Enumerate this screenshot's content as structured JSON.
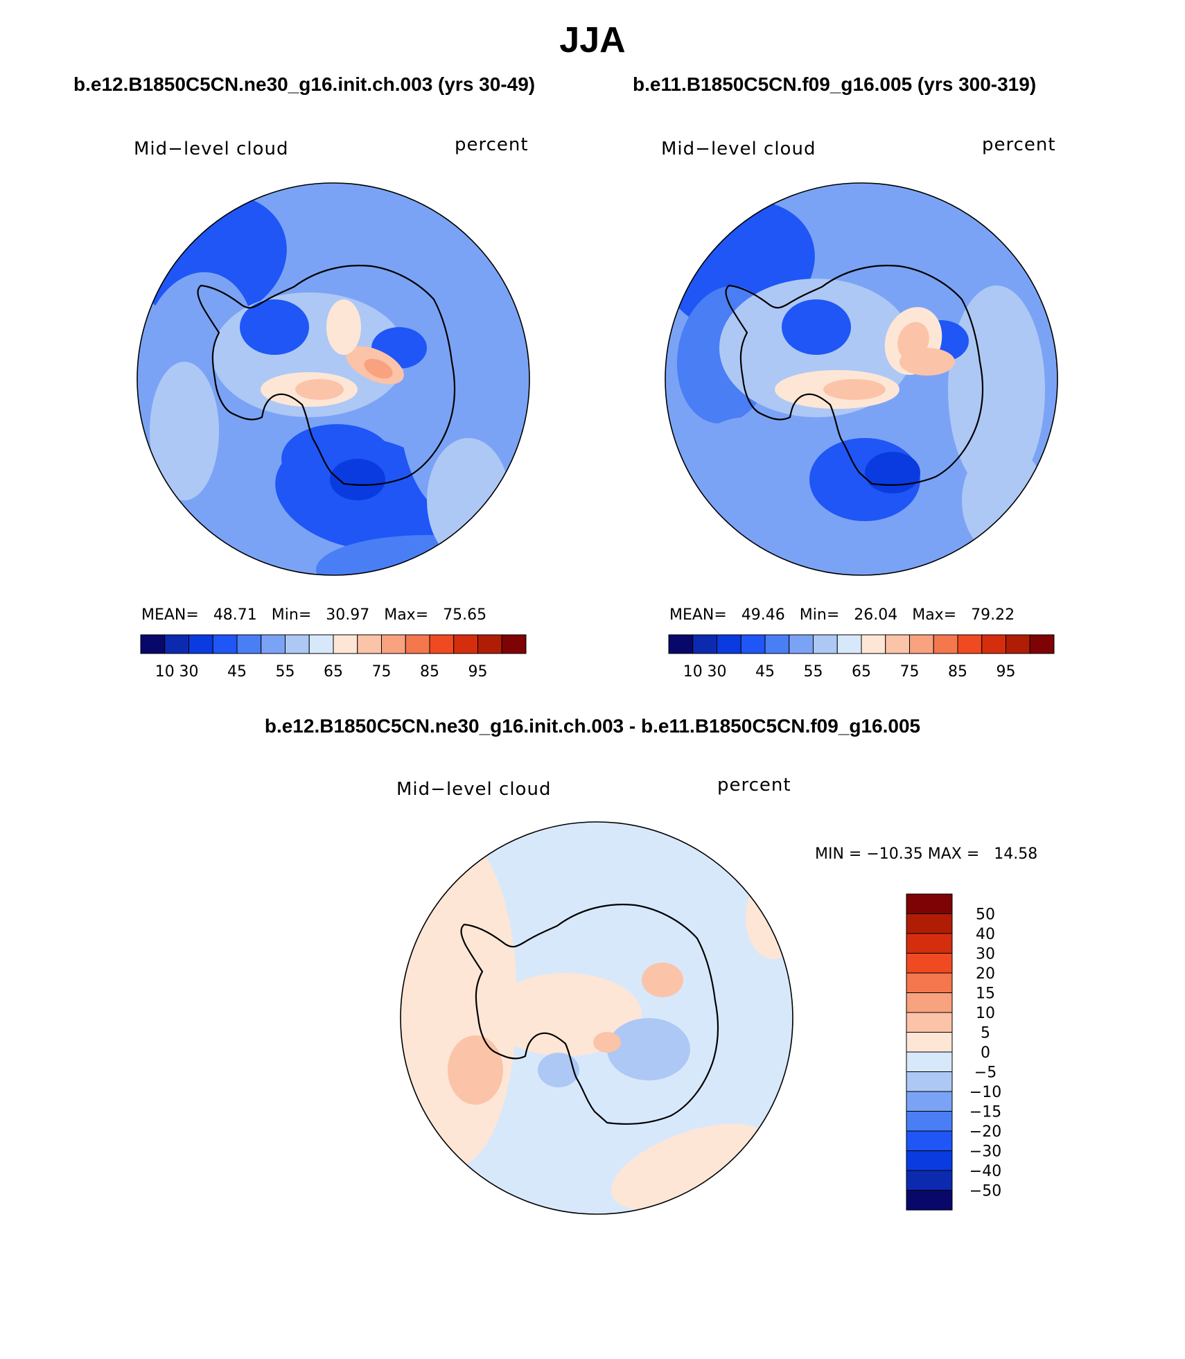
{
  "title": "JJA",
  "panels": [
    {
      "case_title": "b.e12.B1850C5CN.ne30_g16.init.ch.003 (yrs 30-49)",
      "variable": "Mid−level cloud",
      "units": "percent",
      "stats": {
        "mean_label": "MEAN=",
        "mean": "48.71",
        "min_label": "Min=",
        "min": "30.97",
        "max_label": "Max=",
        "max": "75.65"
      }
    },
    {
      "case_title": "b.e11.B1850C5CN.f09_g16.005 (yrs 300-319)",
      "variable": "Mid−level cloud",
      "units": "percent",
      "stats": {
        "mean_label": "MEAN=",
        "mean": "49.46",
        "min_label": "Min=",
        "min": "26.04",
        "max_label": "Max=",
        "max": "79.22"
      }
    }
  ],
  "colorbar": {
    "colors": [
      "#08086b",
      "#0b2ab0",
      "#0a3be0",
      "#1f56f5",
      "#4a7ef5",
      "#7ba3f5",
      "#adc8f5",
      "#d8e8fb",
      "#fde6d6",
      "#fbc3a8",
      "#f8a27f",
      "#f4774e",
      "#f04a22",
      "#d52e0e",
      "#b01d05",
      "#7d0304"
    ],
    "tick_labels": [
      "10",
      "30",
      "45",
      "55",
      "65",
      "75",
      "85",
      "95"
    ]
  },
  "difference": {
    "title": "b.e12.B1850C5CN.ne30_g16.init.ch.003 - b.e11.B1850C5CN.f09_g16.005",
    "variable": "Mid−level cloud",
    "units": "percent",
    "minmax": "MIN = −10.35 MAX =   14.58",
    "colors": [
      "#7d0304",
      "#b01d05",
      "#d52e0e",
      "#f04a22",
      "#f4774e",
      "#f8a27f",
      "#fbc3a8",
      "#fde6d6",
      "#d8e8fb",
      "#adc8f5",
      "#7ba3f5",
      "#4a7ef5",
      "#1f56f5",
      "#0a3be0",
      "#0b2ab0",
      "#08086b"
    ],
    "tick_labels": [
      "50",
      "40",
      "30",
      "20",
      "15",
      "10",
      "5",
      "0",
      "−5",
      "−10",
      "−15",
      "−20",
      "−30",
      "−40",
      "−50"
    ]
  }
}
